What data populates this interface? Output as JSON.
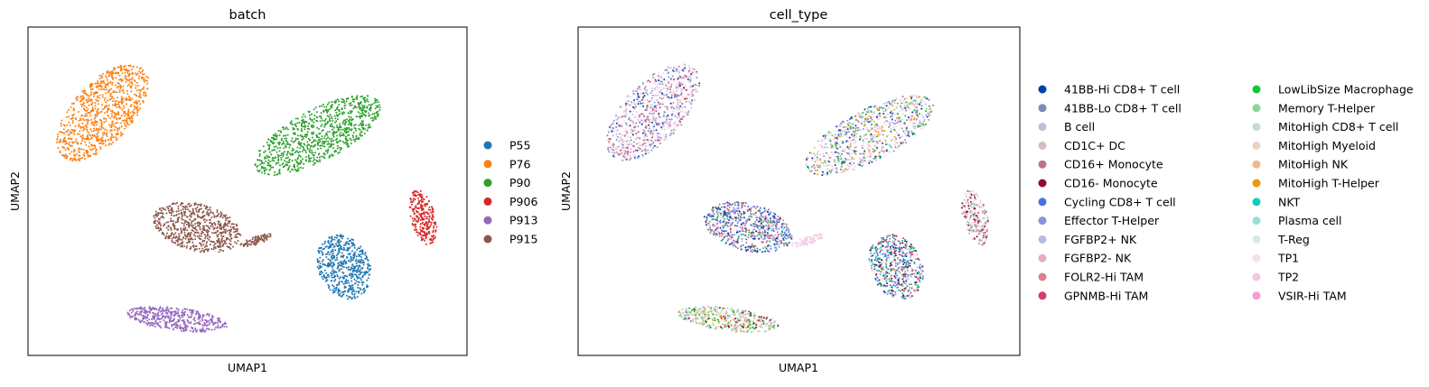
{
  "chart_data": [
    {
      "type": "scatter",
      "title": "batch",
      "xlabel": "UMAP1",
      "ylabel": "UMAP2",
      "grid": false,
      "legend_position": "right",
      "legend": [
        {
          "label": "P55",
          "color": "#1f77b4"
        },
        {
          "label": "P76",
          "color": "#ff7f0e"
        },
        {
          "label": "P90",
          "color": "#2ca02c"
        },
        {
          "label": "P906",
          "color": "#d62728"
        },
        {
          "label": "P913",
          "color": "#9467bd"
        },
        {
          "label": "P915",
          "color": "#8c564b"
        }
      ],
      "clusters": [
        {
          "batch": "P76",
          "cx": 0.17,
          "cy": 0.74,
          "rx": 0.075,
          "ry": 0.165,
          "rot": -30,
          "n": 900
        },
        {
          "batch": "P90",
          "cx": 0.66,
          "cy": 0.67,
          "rx": 0.175,
          "ry": 0.072,
          "rot": 38,
          "n": 900
        },
        {
          "batch": "P906",
          "cx": 0.9,
          "cy": 0.42,
          "rx": 0.028,
          "ry": 0.085,
          "rot": 10,
          "n": 260
        },
        {
          "batch": "P915",
          "cx": 0.385,
          "cy": 0.39,
          "rx": 0.105,
          "ry": 0.07,
          "rot": -25,
          "n": 650
        },
        {
          "batch": "P915",
          "cx": 0.52,
          "cy": 0.35,
          "rx": 0.04,
          "ry": 0.012,
          "rot": 25,
          "n": 90
        },
        {
          "batch": "P55",
          "cx": 0.72,
          "cy": 0.27,
          "rx": 0.06,
          "ry": 0.1,
          "rot": 12,
          "n": 550
        },
        {
          "batch": "P913",
          "cx": 0.34,
          "cy": 0.11,
          "rx": 0.115,
          "ry": 0.035,
          "rot": -10,
          "n": 450
        }
      ]
    },
    {
      "type": "scatter",
      "title": "cell_type",
      "xlabel": "UMAP1",
      "ylabel": "UMAP2",
      "grid": false,
      "legend_position": "right",
      "legend": [
        {
          "label": "41BB-Hi CD8+ T cell",
          "color": "#023fa5"
        },
        {
          "label": "41BB-Lo CD8+ T cell",
          "color": "#7d87b9"
        },
        {
          "label": "B cell",
          "color": "#bec1d4"
        },
        {
          "label": "CD1C+ DC",
          "color": "#d6bcc0"
        },
        {
          "label": "CD16+ Monocyte",
          "color": "#bb7784"
        },
        {
          "label": "CD16- Monocyte",
          "color": "#8e063b"
        },
        {
          "label": "Cycling CD8+ T cell",
          "color": "#4a6fe3"
        },
        {
          "label": "Effector T-Helper",
          "color": "#8595e1"
        },
        {
          "label": "FGFBP2+ NK",
          "color": "#b5bbe3"
        },
        {
          "label": "FGFBP2- NK",
          "color": "#e6afb9"
        },
        {
          "label": "FOLR2-Hi TAM",
          "color": "#e07b91"
        },
        {
          "label": "GPNMB-Hi TAM",
          "color": "#d33f6a"
        },
        {
          "label": "LowLibSize Macrophage",
          "color": "#11c638"
        },
        {
          "label": "Memory T-Helper",
          "color": "#8dd593"
        },
        {
          "label": "MitoHigh CD8+ T cell",
          "color": "#c6dec7"
        },
        {
          "label": "MitoHigh Myeloid",
          "color": "#ead3c6"
        },
        {
          "label": "MitoHigh NK",
          "color": "#f0b98d"
        },
        {
          "label": "MitoHigh T-Helper",
          "color": "#ef9708"
        },
        {
          "label": "NKT",
          "color": "#0fcfc0"
        },
        {
          "label": "Plasma cell",
          "color": "#9cded6"
        },
        {
          "label": "T-Reg",
          "color": "#d5eae7"
        },
        {
          "label": "TP1",
          "color": "#f3e1eb"
        },
        {
          "label": "TP2",
          "color": "#f6c4e1"
        },
        {
          "label": "VSIR-Hi TAM",
          "color": "#f79cd4"
        }
      ]
    }
  ]
}
